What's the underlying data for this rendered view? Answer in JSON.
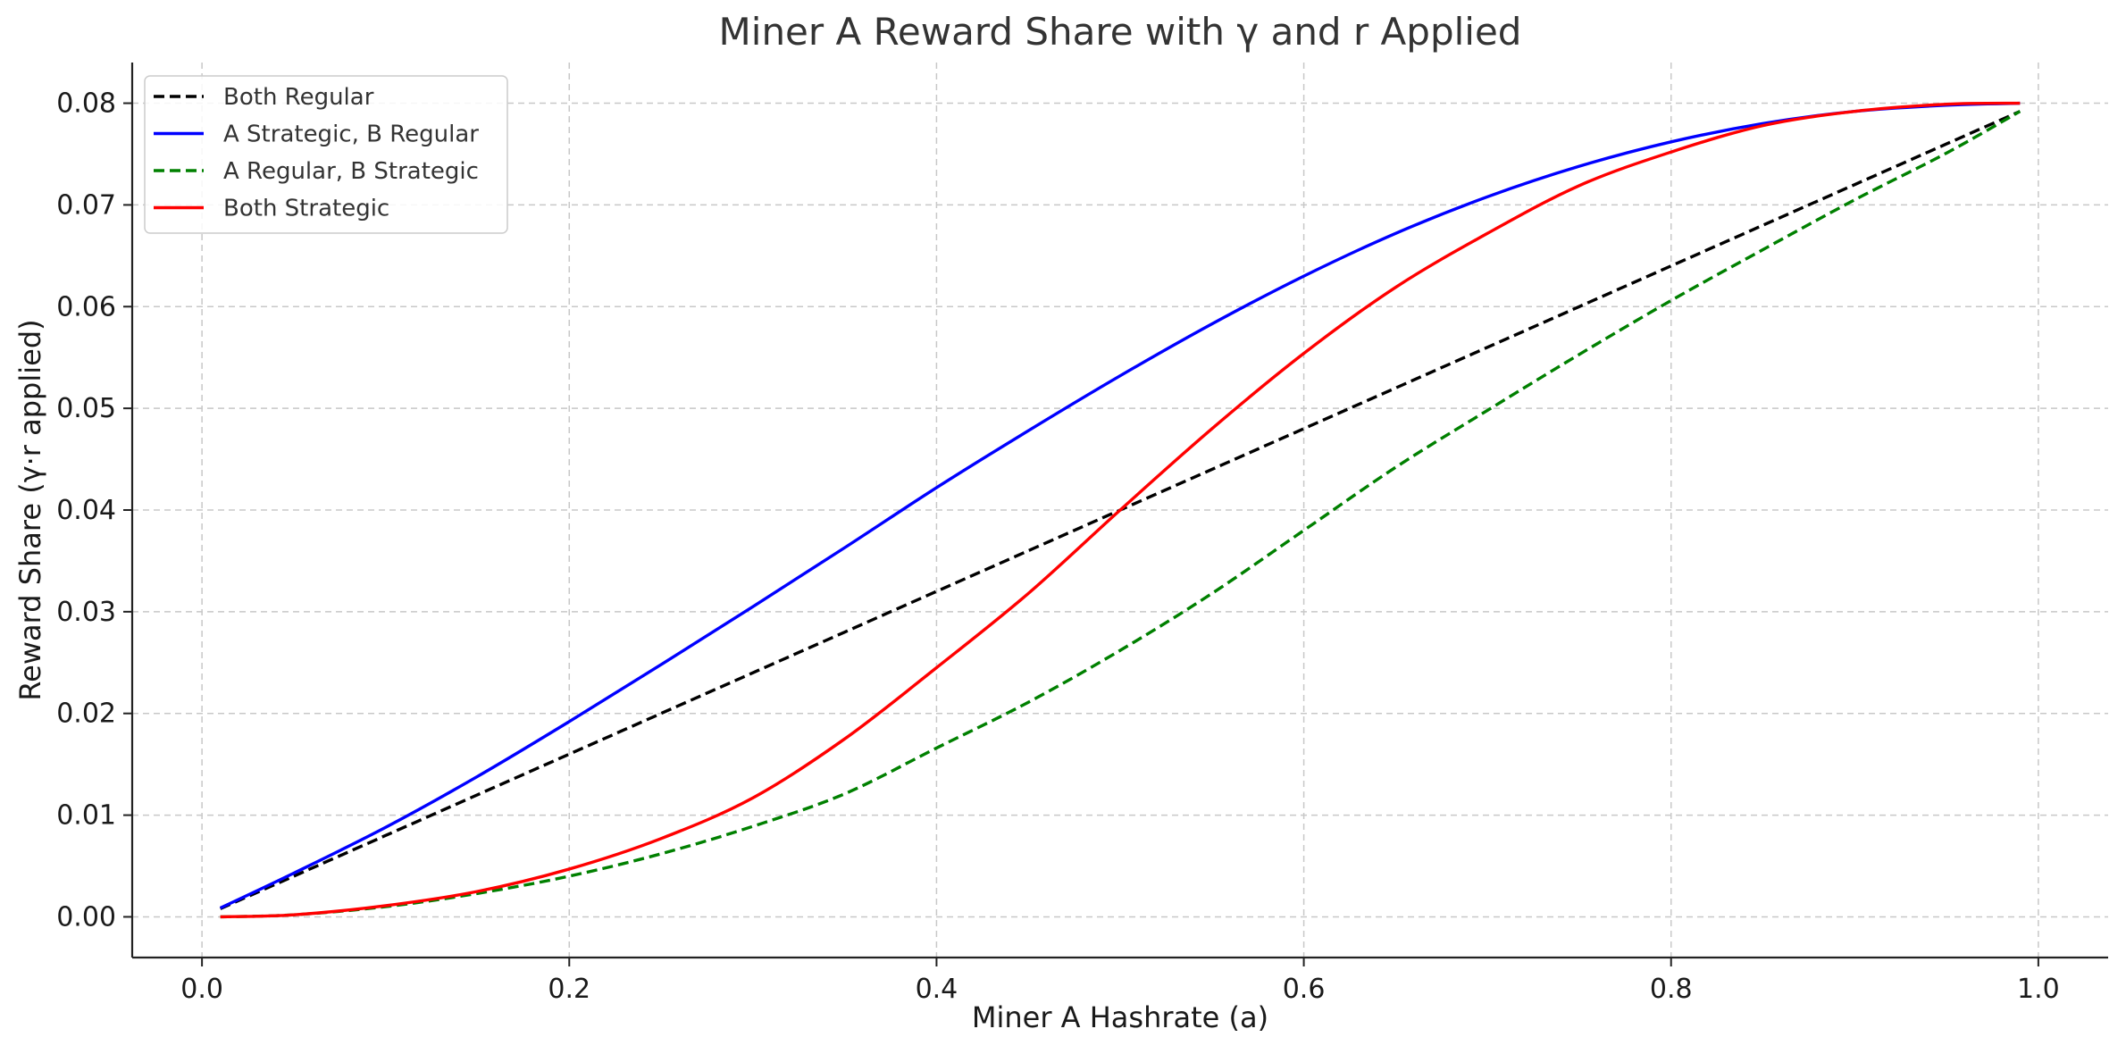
{
  "chart_data": {
    "type": "line",
    "title": "Miner A Reward Share with γ and r Applied",
    "xlabel": "Miner A Hashrate (a)",
    "ylabel": "Reward Share (γ·r applied)",
    "xlim": [
      -0.038,
      1.038
    ],
    "ylim": [
      -0.004,
      0.084
    ],
    "xticks": [
      0.0,
      0.2,
      0.4,
      0.6,
      0.8,
      1.0
    ],
    "xtick_labels": [
      "0.0",
      "0.2",
      "0.4",
      "0.6",
      "0.8",
      "1.0"
    ],
    "yticks": [
      0.0,
      0.01,
      0.02,
      0.03,
      0.04,
      0.05,
      0.06,
      0.07,
      0.08
    ],
    "ytick_labels": [
      "0.00",
      "0.01",
      "0.02",
      "0.03",
      "0.04",
      "0.05",
      "0.06",
      "0.07",
      "0.08"
    ],
    "grid": true,
    "legend_position": "upper-left",
    "x": [
      0.01,
      0.05,
      0.1,
      0.15,
      0.2,
      0.25,
      0.3,
      0.35,
      0.4,
      0.45,
      0.5,
      0.55,
      0.6,
      0.65,
      0.7,
      0.75,
      0.8,
      0.85,
      0.9,
      0.95,
      0.99
    ],
    "series": [
      {
        "name": "Both Regular",
        "color": "#000000",
        "style": "dashed",
        "values": [
          0.0008,
          0.004,
          0.008,
          0.012,
          0.016,
          0.02,
          0.024,
          0.028,
          0.032,
          0.036,
          0.04,
          0.044,
          0.048,
          0.052,
          0.056,
          0.06,
          0.064,
          0.068,
          0.072,
          0.076,
          0.0792
        ]
      },
      {
        "name": "A Strategic, B Regular",
        "color": "#0000ff",
        "style": "solid",
        "values": [
          0.00087,
          0.0043,
          0.0088,
          0.0138,
          0.0192,
          0.0248,
          0.0305,
          0.0363,
          0.0422,
          0.0478,
          0.0532,
          0.0583,
          0.063,
          0.0672,
          0.0708,
          0.0738,
          0.0762,
          0.078,
          0.0792,
          0.0798,
          0.08
        ]
      },
      {
        "name": "A Regular, B Strategic",
        "color": "#008000",
        "style": "dashed",
        "values": [
          0.0,
          0.0002,
          0.001,
          0.0023,
          0.004,
          0.0062,
          0.0089,
          0.0121,
          0.0166,
          0.0211,
          0.0262,
          0.0318,
          0.038,
          0.0442,
          0.0498,
          0.0553,
          0.0606,
          0.0656,
          0.0705,
          0.0751,
          0.0792
        ]
      },
      {
        "name": "Both Strategic",
        "color": "#ff0000",
        "style": "solid",
        "values": [
          0.0,
          0.0002,
          0.0011,
          0.0025,
          0.0047,
          0.0077,
          0.0117,
          0.0175,
          0.0245,
          0.0318,
          0.04,
          0.048,
          0.0554,
          0.0619,
          0.0672,
          0.0719,
          0.0752,
          0.0778,
          0.0792,
          0.0799,
          0.08
        ]
      }
    ]
  }
}
